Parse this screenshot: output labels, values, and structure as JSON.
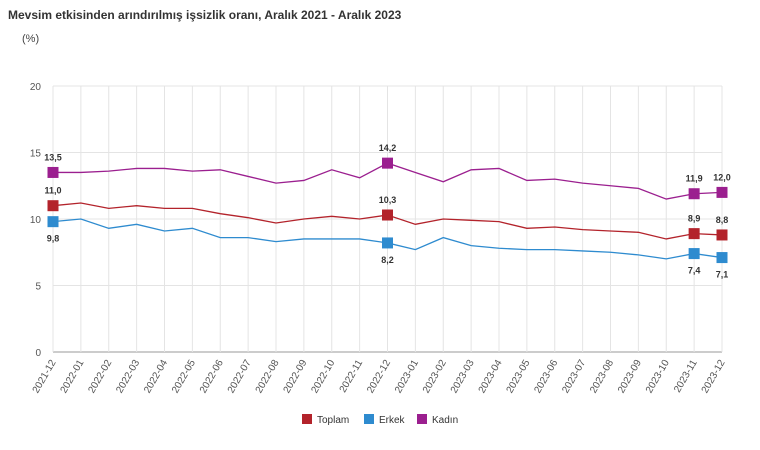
{
  "chart_data": {
    "type": "line",
    "title": "Mevsim etkisinden arındırılmış işsizlik oranı, Aralık 2021 - Aralık 2023",
    "ylabel": "(%)",
    "xlabel": "",
    "ylim": [
      0,
      20
    ],
    "yticks": [
      0,
      5,
      10,
      15,
      20
    ],
    "grid": true,
    "legend": "bottom",
    "x": [
      "2021-12",
      "2022-01",
      "2022-02",
      "2022-03",
      "2022-04",
      "2022-05",
      "2022-06",
      "2022-07",
      "2022-08",
      "2022-09",
      "2022-10",
      "2022-11",
      "2022-12",
      "2023-01",
      "2023-02",
      "2023-03",
      "2023-04",
      "2023-05",
      "2023-06",
      "2023-07",
      "2023-08",
      "2023-09",
      "2023-10",
      "2023-11",
      "2023-12"
    ],
    "labeled_points": [
      "2021-12",
      "2022-12",
      "2023-11",
      "2023-12"
    ],
    "series": [
      {
        "name": "Toplam",
        "color": "#b3232b",
        "label_pos": "above",
        "values": [
          11.0,
          11.2,
          10.8,
          11.0,
          10.8,
          10.8,
          10.4,
          10.1,
          9.7,
          10.0,
          10.2,
          10.0,
          10.3,
          9.6,
          10.0,
          9.9,
          9.8,
          9.3,
          9.4,
          9.2,
          9.1,
          9.0,
          8.5,
          8.9,
          8.8
        ]
      },
      {
        "name": "Erkek",
        "color": "#2e8bcf",
        "label_pos": "below",
        "values": [
          9.8,
          10.0,
          9.3,
          9.6,
          9.1,
          9.3,
          8.6,
          8.6,
          8.3,
          8.5,
          8.5,
          8.5,
          8.2,
          7.7,
          8.6,
          8.0,
          7.8,
          7.7,
          7.7,
          7.6,
          7.5,
          7.3,
          7.0,
          7.4,
          7.1
        ]
      },
      {
        "name": "Kadın",
        "color": "#9b1f8f",
        "label_pos": "above",
        "values": [
          13.5,
          13.5,
          13.6,
          13.8,
          13.8,
          13.6,
          13.7,
          13.2,
          12.7,
          12.9,
          13.7,
          13.1,
          14.2,
          13.5,
          12.8,
          13.7,
          13.8,
          12.9,
          13.0,
          12.7,
          12.5,
          12.3,
          11.5,
          11.9,
          12.0
        ]
      }
    ]
  }
}
